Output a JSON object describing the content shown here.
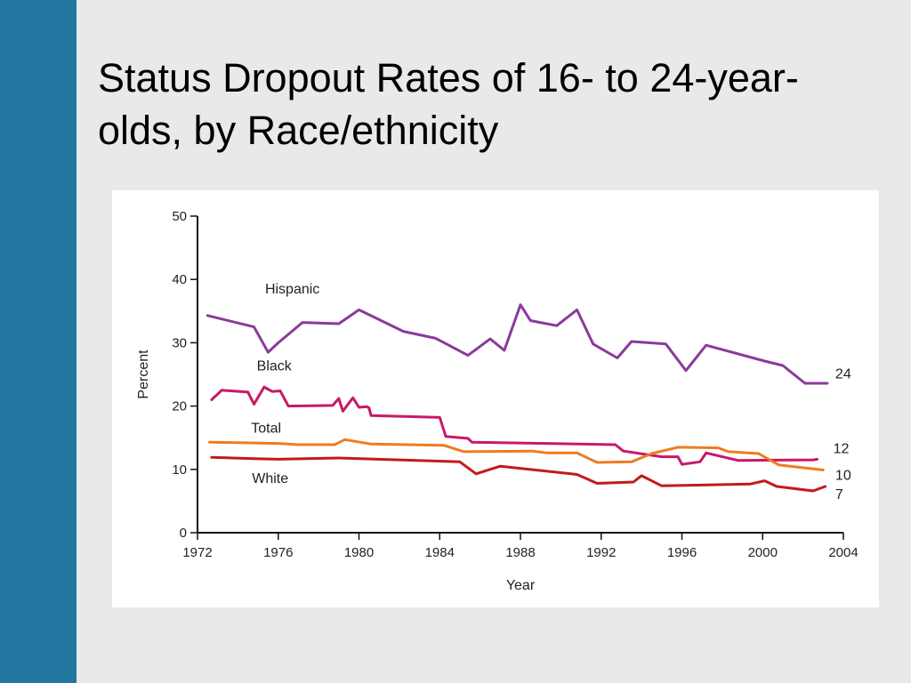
{
  "slide": {
    "title": "Status Dropout Rates of 16- to 24-year-olds, by Race/ethnicity",
    "sidebar_color": "#2277a0"
  },
  "chart_data": {
    "type": "line",
    "title": "",
    "xlabel": "Year",
    "ylabel": "Percent",
    "xlim": [
      1972,
      2004
    ],
    "ylim": [
      0,
      50
    ],
    "x_ticks": [
      "1972",
      "1976",
      "1980",
      "1984",
      "1988",
      "1992",
      "1996",
      "2000",
      "2004"
    ],
    "y_ticks": [
      "0",
      "10",
      "20",
      "30",
      "40",
      "50"
    ],
    "grid": false,
    "series": [
      {
        "name": "Hispanic",
        "color": "#8b3a9a",
        "end_label": "24",
        "points": [
          [
            1972.5,
            34.3
          ],
          [
            1974.8,
            32.5
          ],
          [
            1975.5,
            28.5
          ],
          [
            1976,
            30
          ],
          [
            1977.2,
            33.2
          ],
          [
            1979,
            33
          ],
          [
            1980,
            35.2
          ],
          [
            1982.2,
            31.8
          ],
          [
            1983.8,
            30.7
          ],
          [
            1985.4,
            28
          ],
          [
            1986.5,
            30.6
          ],
          [
            1987.2,
            28.8
          ],
          [
            1988,
            36
          ],
          [
            1988.5,
            33.5
          ],
          [
            1989.8,
            32.7
          ],
          [
            1990.8,
            35.2
          ],
          [
            1991.6,
            29.8
          ],
          [
            1992.8,
            27.6
          ],
          [
            1993.5,
            30.2
          ],
          [
            1995.2,
            29.8
          ],
          [
            1996.2,
            25.6
          ],
          [
            1997.2,
            29.6
          ],
          [
            2000.1,
            27.1
          ],
          [
            2001,
            26.4
          ],
          [
            2002.1,
            23.6
          ],
          [
            2003.2,
            23.6
          ]
        ]
      },
      {
        "name": "Black",
        "color": "#c8186a",
        "end_label": "12",
        "points": [
          [
            1972.7,
            21
          ],
          [
            1973.2,
            22.5
          ],
          [
            1974.5,
            22.2
          ],
          [
            1974.8,
            20.3
          ],
          [
            1975.3,
            23
          ],
          [
            1975.7,
            22.3
          ],
          [
            1976.1,
            22.4
          ],
          [
            1976.5,
            20
          ],
          [
            1978.7,
            20.1
          ],
          [
            1979,
            21.2
          ],
          [
            1979.2,
            19.2
          ],
          [
            1979.7,
            21.3
          ],
          [
            1980,
            19.8
          ],
          [
            1980.4,
            19.9
          ],
          [
            1980.5,
            19.7
          ],
          [
            1980.6,
            18.5
          ],
          [
            1984,
            18.2
          ],
          [
            1984.3,
            15.2
          ],
          [
            1985.4,
            14.9
          ],
          [
            1985.6,
            14.3
          ],
          [
            1992.7,
            13.9
          ],
          [
            1993.1,
            12.9
          ],
          [
            1995,
            12
          ],
          [
            1995.8,
            12
          ],
          [
            1996,
            10.8
          ],
          [
            1996.9,
            11.2
          ],
          [
            1997.2,
            12.6
          ],
          [
            1998.8,
            11.4
          ],
          [
            2002.5,
            11.5
          ],
          [
            2002.7,
            11.6
          ]
        ]
      },
      {
        "name": "Total",
        "color": "#f07b1e",
        "end_label": "10",
        "points": [
          [
            1972.6,
            14.3
          ],
          [
            1976,
            14.1
          ],
          [
            1977,
            13.9
          ],
          [
            1978.8,
            13.9
          ],
          [
            1979.3,
            14.7
          ],
          [
            1980.6,
            14
          ],
          [
            1984.2,
            13.8
          ],
          [
            1985.2,
            12.8
          ],
          [
            1988.6,
            12.9
          ],
          [
            1989.3,
            12.6
          ],
          [
            1990.8,
            12.6
          ],
          [
            1991.8,
            11.1
          ],
          [
            1993.5,
            11.2
          ],
          [
            1994.5,
            12.5
          ],
          [
            1995.8,
            13.5
          ],
          [
            1997.8,
            13.4
          ],
          [
            1998.3,
            12.8
          ],
          [
            1999.8,
            12.5
          ],
          [
            2000.8,
            10.7
          ],
          [
            2003,
            9.9
          ]
        ]
      },
      {
        "name": "White",
        "color": "#c41a1a",
        "end_label": "7",
        "points": [
          [
            1972.7,
            11.9
          ],
          [
            1974.8,
            11.7
          ],
          [
            1976,
            11.6
          ],
          [
            1979,
            11.8
          ],
          [
            1985,
            11.2
          ],
          [
            1985.8,
            9.3
          ],
          [
            1987,
            10.5
          ],
          [
            1990.8,
            9.2
          ],
          [
            1991.8,
            7.8
          ],
          [
            1993.6,
            8
          ],
          [
            1994,
            9
          ],
          [
            1995,
            7.4
          ],
          [
            1996.5,
            7.5
          ],
          [
            1999.4,
            7.7
          ],
          [
            2000.1,
            8.2
          ],
          [
            2000.7,
            7.3
          ],
          [
            2002.5,
            6.6
          ],
          [
            2003.1,
            7.3
          ]
        ]
      }
    ],
    "series_labels": [
      "Hispanic",
      "Black",
      "Total",
      "White"
    ],
    "end_labels": [
      "24",
      "12",
      "10",
      "7"
    ]
  }
}
